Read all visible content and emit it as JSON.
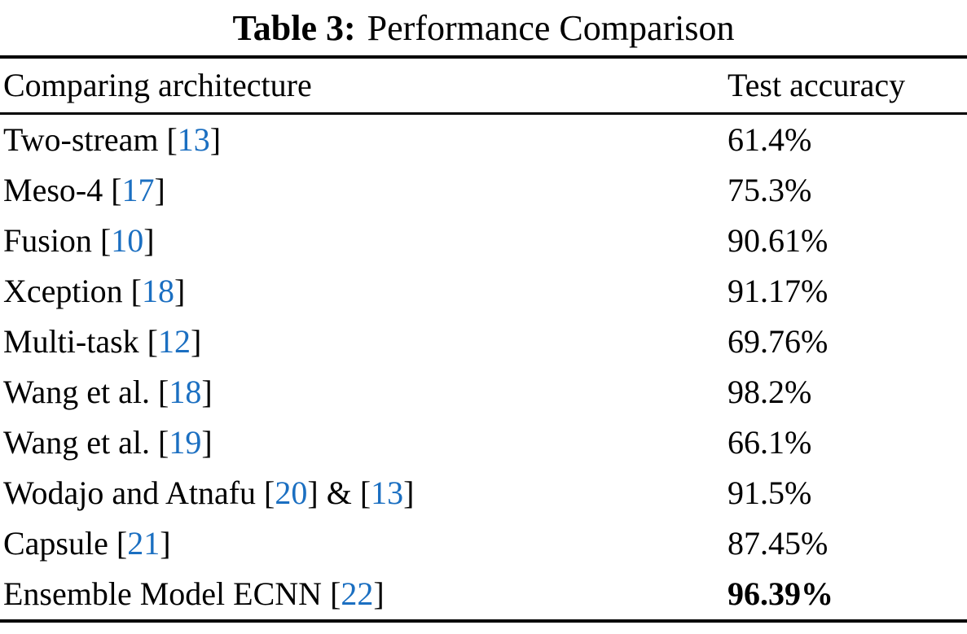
{
  "caption": {
    "label": "Table 3:",
    "text": "Performance Comparison"
  },
  "table": {
    "columns": [
      "Comparing architecture",
      "Test accuracy"
    ],
    "rows": [
      {
        "architecture": [
          {
            "type": "text",
            "value": "Two-stream "
          },
          {
            "type": "ref",
            "value": "13"
          }
        ],
        "accuracy": "61.4%",
        "accuracy_bold": false
      },
      {
        "architecture": [
          {
            "type": "text",
            "value": "Meso-4 "
          },
          {
            "type": "ref",
            "value": "17"
          }
        ],
        "accuracy": "75.3%",
        "accuracy_bold": false
      },
      {
        "architecture": [
          {
            "type": "text",
            "value": "Fusion "
          },
          {
            "type": "ref",
            "value": "10"
          }
        ],
        "accuracy": "90.61%",
        "accuracy_bold": false
      },
      {
        "architecture": [
          {
            "type": "text",
            "value": "Xception "
          },
          {
            "type": "ref",
            "value": "18"
          }
        ],
        "accuracy": "91.17%",
        "accuracy_bold": false
      },
      {
        "architecture": [
          {
            "type": "text",
            "value": "Multi-task "
          },
          {
            "type": "ref",
            "value": "12"
          }
        ],
        "accuracy": "69.76%",
        "accuracy_bold": false
      },
      {
        "architecture": [
          {
            "type": "text",
            "value": "Wang et al. "
          },
          {
            "type": "ref",
            "value": "18"
          }
        ],
        "accuracy": "98.2%",
        "accuracy_bold": false
      },
      {
        "architecture": [
          {
            "type": "text",
            "value": "Wang et al. "
          },
          {
            "type": "ref",
            "value": "19"
          }
        ],
        "accuracy": "66.1%",
        "accuracy_bold": false
      },
      {
        "architecture": [
          {
            "type": "text",
            "value": "Wodajo and Atnafu "
          },
          {
            "type": "ref",
            "value": "20"
          },
          {
            "type": "text",
            "value": " & "
          },
          {
            "type": "ref",
            "value": "13"
          }
        ],
        "accuracy": "91.5%",
        "accuracy_bold": false
      },
      {
        "architecture": [
          {
            "type": "text",
            "value": "Capsule "
          },
          {
            "type": "ref",
            "value": "21"
          }
        ],
        "accuracy": "87.45%",
        "accuracy_bold": false
      },
      {
        "architecture": [
          {
            "type": "text",
            "value": "Ensemble Model ECNN "
          },
          {
            "type": "ref",
            "value": "22"
          }
        ],
        "accuracy": "96.39%",
        "accuracy_bold": true
      }
    ]
  },
  "colors": {
    "text": "#000000",
    "citation_link": "#1b6fc1",
    "rule": "#000000"
  }
}
